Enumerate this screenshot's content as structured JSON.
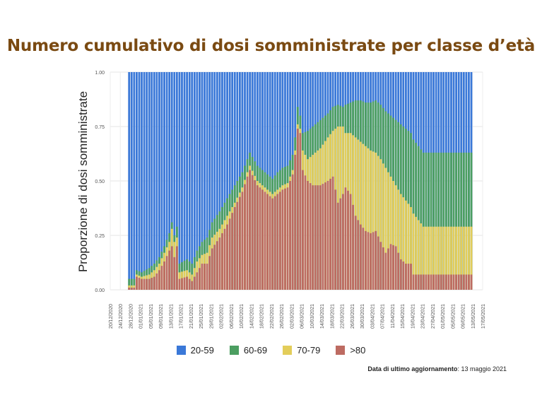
{
  "title": "Numero cumulativo di dosi somministrate per classe d’età",
  "footer": {
    "label": "Data di ultimo aggiornamento",
    "value": ": 13 maggio 2021"
  },
  "legend": [
    {
      "label": "20-59",
      "color": "#3a78d8"
    },
    {
      "label": "60-69",
      "color": "#4c9e61"
    },
    {
      "label": "70-79",
      "color": "#e3cd5a"
    },
    {
      "label": ">80",
      "color": "#bd6b62"
    }
  ],
  "chart_data": {
    "type": "bar",
    "stacked": true,
    "ylabel": "Proporzione di dosi somministrate",
    "ylim": [
      0,
      1
    ],
    "yticks": [
      "0.00",
      "0.25",
      "0.50",
      "0.75",
      "1.00"
    ],
    "xticks": [
      "20/12/2020",
      "24/12/2020",
      "28/12/2020",
      "01/01/2021",
      "05/01/2021",
      "09/01/2021",
      "13/01/2021",
      "17/01/2021",
      "21/01/2021",
      "25/01/2021",
      "29/01/2021",
      "02/02/2021",
      "06/02/2021",
      "10/02/2021",
      "14/02/2021",
      "18/02/2021",
      "22/02/2021",
      "26/02/2021",
      "02/03/2021",
      "06/03/2021",
      "10/03/2021",
      "14/03/2021",
      "18/03/2021",
      "22/03/2021",
      "26/03/2021",
      "30/03/2021",
      "03/04/2021",
      "07/04/2021",
      "11/04/2021",
      "15/04/2021",
      "19/04/2021",
      "23/04/2021",
      "27/04/2021",
      "01/05/2021",
      "05/05/2021",
      "09/05/2021",
      "13/05/2021",
      "17/05/2021"
    ],
    "x_start": "2020-12-20",
    "bars_start": "2020-12-27",
    "bars_end": "2021-05-12",
    "series": [
      {
        "name": ">80",
        "color": "#bd6b62",
        "knots": [
          [
            0,
            0.01
          ],
          [
            2,
            0.01
          ],
          [
            3,
            0.06
          ],
          [
            5,
            0.05
          ],
          [
            8,
            0.05
          ],
          [
            10,
            0.06
          ],
          [
            12,
            0.09
          ],
          [
            14,
            0.13
          ],
          [
            16,
            0.18
          ],
          [
            17,
            0.2
          ],
          [
            18,
            0.15
          ],
          [
            19,
            0.2
          ],
          [
            20,
            0.05
          ],
          [
            23,
            0.06
          ],
          [
            25,
            0.04
          ],
          [
            27,
            0.08
          ],
          [
            29,
            0.12
          ],
          [
            31,
            0.12
          ],
          [
            33,
            0.19
          ],
          [
            36,
            0.24
          ],
          [
            39,
            0.3
          ],
          [
            42,
            0.38
          ],
          [
            45,
            0.45
          ],
          [
            47,
            0.52
          ],
          [
            48,
            0.55
          ],
          [
            51,
            0.48
          ],
          [
            54,
            0.45
          ],
          [
            57,
            0.42
          ],
          [
            59,
            0.44
          ],
          [
            61,
            0.46
          ],
          [
            63,
            0.47
          ],
          [
            65,
            0.53
          ],
          [
            66,
            0.62
          ],
          [
            67,
            0.74
          ],
          [
            68,
            0.72
          ],
          [
            69,
            0.55
          ],
          [
            71,
            0.5
          ],
          [
            73,
            0.48
          ],
          [
            76,
            0.48
          ],
          [
            79,
            0.5
          ],
          [
            81,
            0.52
          ],
          [
            83,
            0.4
          ],
          [
            85,
            0.44
          ],
          [
            86,
            0.47
          ],
          [
            88,
            0.44
          ],
          [
            90,
            0.34
          ],
          [
            92,
            0.3
          ],
          [
            94,
            0.27
          ],
          [
            96,
            0.26
          ],
          [
            98,
            0.27
          ],
          [
            100,
            0.22
          ],
          [
            102,
            0.17
          ],
          [
            104,
            0.21
          ],
          [
            106,
            0.2
          ],
          [
            108,
            0.14
          ],
          [
            110,
            0.12
          ],
          [
            112,
            0.12
          ],
          [
            113,
            0.07
          ],
          [
            115,
            0.07
          ],
          [
            117,
            0.07
          ]
        ]
      },
      {
        "name": "70-79",
        "color": "#e3cd5a",
        "knots": [
          [
            0,
            0.02
          ],
          [
            2,
            0.02
          ],
          [
            3,
            0.07
          ],
          [
            5,
            0.06
          ],
          [
            8,
            0.07
          ],
          [
            10,
            0.09
          ],
          [
            12,
            0.12
          ],
          [
            14,
            0.17
          ],
          [
            16,
            0.22
          ],
          [
            17,
            0.28
          ],
          [
            18,
            0.22
          ],
          [
            19,
            0.24
          ],
          [
            20,
            0.08
          ],
          [
            23,
            0.09
          ],
          [
            25,
            0.07
          ],
          [
            27,
            0.13
          ],
          [
            29,
            0.16
          ],
          [
            31,
            0.17
          ],
          [
            33,
            0.24
          ],
          [
            36,
            0.28
          ],
          [
            39,
            0.34
          ],
          [
            42,
            0.4
          ],
          [
            45,
            0.47
          ],
          [
            47,
            0.54
          ],
          [
            48,
            0.57
          ],
          [
            51,
            0.5
          ],
          [
            54,
            0.47
          ],
          [
            57,
            0.44
          ],
          [
            59,
            0.46
          ],
          [
            61,
            0.48
          ],
          [
            63,
            0.49
          ],
          [
            65,
            0.55
          ],
          [
            66,
            0.64
          ],
          [
            67,
            0.76
          ],
          [
            68,
            0.74
          ],
          [
            69,
            0.64
          ],
          [
            71,
            0.6
          ],
          [
            73,
            0.62
          ],
          [
            76,
            0.65
          ],
          [
            79,
            0.7
          ],
          [
            81,
            0.73
          ],
          [
            83,
            0.75
          ],
          [
            85,
            0.75
          ],
          [
            86,
            0.72
          ],
          [
            88,
            0.72
          ],
          [
            90,
            0.7
          ],
          [
            92,
            0.68
          ],
          [
            94,
            0.66
          ],
          [
            96,
            0.64
          ],
          [
            98,
            0.63
          ],
          [
            100,
            0.6
          ],
          [
            102,
            0.56
          ],
          [
            104,
            0.52
          ],
          [
            106,
            0.48
          ],
          [
            108,
            0.44
          ],
          [
            110,
            0.41
          ],
          [
            112,
            0.38
          ],
          [
            113,
            0.35
          ],
          [
            115,
            0.32
          ],
          [
            117,
            0.29
          ]
        ]
      },
      {
        "name": "60-69",
        "color": "#4c9e61",
        "knots": [
          [
            0,
            0.05
          ],
          [
            2,
            0.05
          ],
          [
            3,
            0.09
          ],
          [
            5,
            0.08
          ],
          [
            8,
            0.1
          ],
          [
            10,
            0.12
          ],
          [
            12,
            0.15
          ],
          [
            14,
            0.2
          ],
          [
            16,
            0.26
          ],
          [
            17,
            0.31
          ],
          [
            18,
            0.25
          ],
          [
            19,
            0.29
          ],
          [
            20,
            0.12
          ],
          [
            23,
            0.14
          ],
          [
            25,
            0.12
          ],
          [
            27,
            0.18
          ],
          [
            29,
            0.22
          ],
          [
            31,
            0.24
          ],
          [
            33,
            0.31
          ],
          [
            36,
            0.36
          ],
          [
            39,
            0.42
          ],
          [
            42,
            0.48
          ],
          [
            45,
            0.54
          ],
          [
            47,
            0.6
          ],
          [
            48,
            0.63
          ],
          [
            51,
            0.57
          ],
          [
            54,
            0.54
          ],
          [
            57,
            0.51
          ],
          [
            59,
            0.54
          ],
          [
            61,
            0.56
          ],
          [
            63,
            0.57
          ],
          [
            65,
            0.62
          ],
          [
            66,
            0.7
          ],
          [
            67,
            0.84
          ],
          [
            68,
            0.8
          ],
          [
            69,
            0.72
          ],
          [
            71,
            0.73
          ],
          [
            73,
            0.75
          ],
          [
            76,
            0.78
          ],
          [
            79,
            0.81
          ],
          [
            81,
            0.84
          ],
          [
            83,
            0.85
          ],
          [
            85,
            0.84
          ],
          [
            86,
            0.85
          ],
          [
            88,
            0.86
          ],
          [
            90,
            0.87
          ],
          [
            92,
            0.87
          ],
          [
            94,
            0.86
          ],
          [
            96,
            0.86
          ],
          [
            98,
            0.87
          ],
          [
            100,
            0.85
          ],
          [
            102,
            0.82
          ],
          [
            104,
            0.8
          ],
          [
            106,
            0.78
          ],
          [
            108,
            0.76
          ],
          [
            110,
            0.74
          ],
          [
            112,
            0.72
          ],
          [
            113,
            0.69
          ],
          [
            115,
            0.66
          ],
          [
            117,
            0.63
          ]
        ]
      },
      {
        "name": "20-59",
        "color": "#3a78d8",
        "constant": 1.0
      }
    ]
  }
}
